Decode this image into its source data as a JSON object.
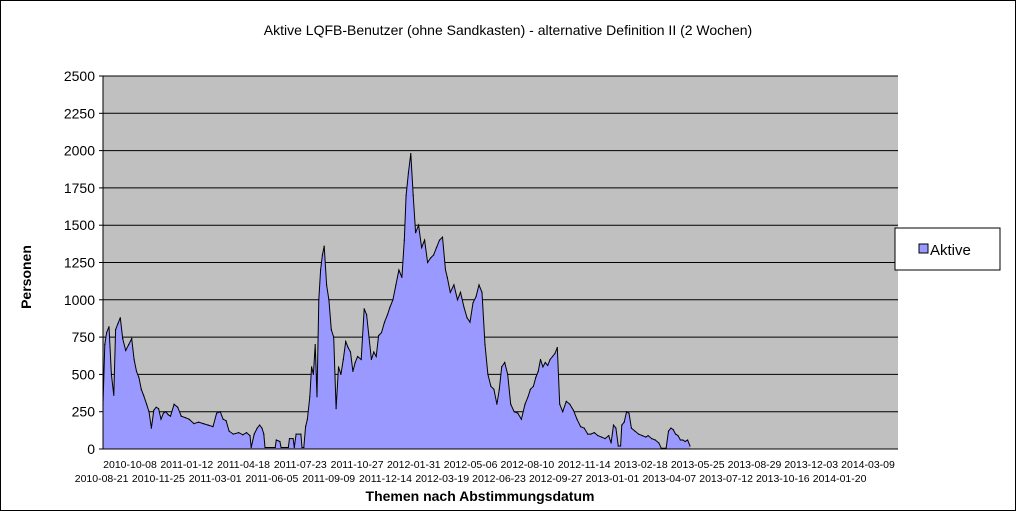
{
  "chart_data": {
    "type": "area",
    "title": "Aktive LQFB-Benutzer (ohne Sandkasten) - alternative Definition II (2 Wochen)",
    "xlabel": "Themen nach Abstimmungsdatum",
    "ylabel": "Personen",
    "ylim": [
      0,
      2500
    ],
    "yticks": [
      0,
      250,
      500,
      750,
      1000,
      1250,
      1500,
      1750,
      2000,
      2250,
      2500
    ],
    "grid": true,
    "legend": "right",
    "x_tick_labels_row1": [
      "2010-10-08",
      "2011-01-12",
      "2011-04-18",
      "2011-07-23",
      "2011-10-27",
      "2012-01-31",
      "2012-05-06",
      "2012-08-10",
      "2012-11-14",
      "2013-02-18",
      "2013-05-25",
      "2013-08-29",
      "2013-12-03",
      "2014-03-09"
    ],
    "x_tick_labels_row2": [
      "2010-08-21",
      "2010-11-25",
      "2011-03-01",
      "2011-06-05",
      "2011-09-09",
      "2011-12-14",
      "2012-03-19",
      "2012-06-23",
      "2012-09-27",
      "2013-01-01",
      "2013-04-07",
      "2013-07-12",
      "2013-10-16",
      "2014-01-20"
    ],
    "x_start": "2010-08-21",
    "x_end": "2014-04-12",
    "series": [
      {
        "name": "Aktive",
        "color": "#9999ff",
        "line_color": "#000000",
        "points": [
          [
            "2010-08-21",
            300
          ],
          [
            "2010-08-24",
            700
          ],
          [
            "2010-08-27",
            780
          ],
          [
            "2010-08-31",
            820
          ],
          [
            "2010-09-04",
            500
          ],
          [
            "2010-09-08",
            360
          ],
          [
            "2010-09-11",
            800
          ],
          [
            "2010-09-15",
            840
          ],
          [
            "2010-09-19",
            880
          ],
          [
            "2010-09-23",
            740
          ],
          [
            "2010-09-28",
            660
          ],
          [
            "2010-10-03",
            700
          ],
          [
            "2010-10-08",
            740
          ],
          [
            "2010-10-12",
            600
          ],
          [
            "2010-10-16",
            520
          ],
          [
            "2010-10-20",
            480
          ],
          [
            "2010-10-24",
            400
          ],
          [
            "2010-10-28",
            360
          ],
          [
            "2010-11-02",
            300
          ],
          [
            "2010-11-06",
            250
          ],
          [
            "2010-11-10",
            140
          ],
          [
            "2010-11-14",
            260
          ],
          [
            "2010-11-18",
            280
          ],
          [
            "2010-11-22",
            270
          ],
          [
            "2010-11-26",
            200
          ],
          [
            "2010-11-30",
            240
          ],
          [
            "2010-12-04",
            250
          ],
          [
            "2010-12-08",
            230
          ],
          [
            "2010-12-12",
            220
          ],
          [
            "2010-12-18",
            300
          ],
          [
            "2010-12-24",
            280
          ],
          [
            "2010-12-30",
            220
          ],
          [
            "2011-01-06",
            210
          ],
          [
            "2011-01-12",
            200
          ],
          [
            "2011-01-20",
            170
          ],
          [
            "2011-01-28",
            180
          ],
          [
            "2011-02-05",
            170
          ],
          [
            "2011-02-13",
            160
          ],
          [
            "2011-02-21",
            150
          ],
          [
            "2011-02-27",
            240
          ],
          [
            "2011-03-05",
            250
          ],
          [
            "2011-03-10",
            200
          ],
          [
            "2011-03-15",
            190
          ],
          [
            "2011-03-20",
            120
          ],
          [
            "2011-03-27",
            100
          ],
          [
            "2011-04-05",
            110
          ],
          [
            "2011-04-12",
            95
          ],
          [
            "2011-04-18",
            110
          ],
          [
            "2011-04-24",
            90
          ],
          [
            "2011-04-26",
            10
          ],
          [
            "2011-05-01",
            100
          ],
          [
            "2011-05-06",
            140
          ],
          [
            "2011-05-10",
            160
          ],
          [
            "2011-05-14",
            140
          ],
          [
            "2011-05-17",
            100
          ],
          [
            "2011-05-19",
            10
          ],
          [
            "2011-06-05",
            10
          ],
          [
            "2011-06-07",
            60
          ],
          [
            "2011-06-13",
            50
          ],
          [
            "2011-06-15",
            10
          ],
          [
            "2011-06-27",
            10
          ],
          [
            "2011-06-29",
            70
          ],
          [
            "2011-07-05",
            70
          ],
          [
            "2011-07-07",
            10
          ],
          [
            "2011-07-10",
            100
          ],
          [
            "2011-07-18",
            100
          ],
          [
            "2011-07-20",
            10
          ],
          [
            "2011-07-23",
            10
          ],
          [
            "2011-07-26",
            150
          ],
          [
            "2011-07-29",
            200
          ],
          [
            "2011-08-02",
            350
          ],
          [
            "2011-08-05",
            550
          ],
          [
            "2011-08-08",
            500
          ],
          [
            "2011-08-11",
            700
          ],
          [
            "2011-08-14",
            350
          ],
          [
            "2011-08-17",
            1000
          ],
          [
            "2011-08-20",
            1200
          ],
          [
            "2011-08-23",
            1300
          ],
          [
            "2011-08-26",
            1360
          ],
          [
            "2011-08-30",
            1100
          ],
          [
            "2011-09-03",
            1000
          ],
          [
            "2011-09-07",
            800
          ],
          [
            "2011-09-11",
            750
          ],
          [
            "2011-09-15",
            270
          ],
          [
            "2011-09-19",
            550
          ],
          [
            "2011-09-23",
            500
          ],
          [
            "2011-09-27",
            600
          ],
          [
            "2011-10-01",
            720
          ],
          [
            "2011-10-05",
            680
          ],
          [
            "2011-10-09",
            650
          ],
          [
            "2011-10-13",
            520
          ],
          [
            "2011-10-17",
            580
          ],
          [
            "2011-10-21",
            620
          ],
          [
            "2011-10-27",
            600
          ],
          [
            "2011-11-01",
            940
          ],
          [
            "2011-11-05",
            900
          ],
          [
            "2011-11-09",
            750
          ],
          [
            "2011-11-13",
            600
          ],
          [
            "2011-11-17",
            650
          ],
          [
            "2011-11-21",
            620
          ],
          [
            "2011-11-25",
            760
          ],
          [
            "2011-11-30",
            780
          ],
          [
            "2011-12-05",
            850
          ],
          [
            "2011-12-10",
            900
          ],
          [
            "2011-12-14",
            950
          ],
          [
            "2011-12-19",
            1000
          ],
          [
            "2011-12-24",
            1100
          ],
          [
            "2011-12-29",
            1200
          ],
          [
            "2012-01-03",
            1150
          ],
          [
            "2012-01-07",
            1400
          ],
          [
            "2012-01-10",
            1700
          ],
          [
            "2012-01-14",
            1850
          ],
          [
            "2012-01-18",
            1980
          ],
          [
            "2012-01-22",
            1700
          ],
          [
            "2012-01-26",
            1450
          ],
          [
            "2012-01-31",
            1500
          ],
          [
            "2012-02-05",
            1350
          ],
          [
            "2012-02-10",
            1400
          ],
          [
            "2012-02-15",
            1250
          ],
          [
            "2012-02-20",
            1280
          ],
          [
            "2012-02-25",
            1300
          ],
          [
            "2012-03-01",
            1350
          ],
          [
            "2012-03-06",
            1400
          ],
          [
            "2012-03-11",
            1420
          ],
          [
            "2012-03-16",
            1200
          ],
          [
            "2012-03-19",
            1150
          ],
          [
            "2012-03-24",
            1050
          ],
          [
            "2012-03-30",
            1100
          ],
          [
            "2012-04-05",
            1000
          ],
          [
            "2012-04-10",
            1050
          ],
          [
            "2012-04-16",
            950
          ],
          [
            "2012-04-21",
            880
          ],
          [
            "2012-04-26",
            850
          ],
          [
            "2012-05-01",
            980
          ],
          [
            "2012-05-06",
            1020
          ],
          [
            "2012-05-11",
            1100
          ],
          [
            "2012-05-16",
            1050
          ],
          [
            "2012-05-21",
            700
          ],
          [
            "2012-05-26",
            500
          ],
          [
            "2012-05-31",
            420
          ],
          [
            "2012-06-05",
            400
          ],
          [
            "2012-06-10",
            300
          ],
          [
            "2012-06-14",
            400
          ],
          [
            "2012-06-18",
            550
          ],
          [
            "2012-06-23",
            580
          ],
          [
            "2012-06-28",
            500
          ],
          [
            "2012-07-03",
            300
          ],
          [
            "2012-07-09",
            250
          ],
          [
            "2012-07-15",
            240
          ],
          [
            "2012-07-21",
            200
          ],
          [
            "2012-07-27",
            300
          ],
          [
            "2012-08-01",
            350
          ],
          [
            "2012-08-05",
            400
          ],
          [
            "2012-08-10",
            420
          ],
          [
            "2012-08-14",
            480
          ],
          [
            "2012-08-18",
            520
          ],
          [
            "2012-08-22",
            600
          ],
          [
            "2012-08-26",
            550
          ],
          [
            "2012-08-30",
            580
          ],
          [
            "2012-09-03",
            560
          ],
          [
            "2012-09-07",
            600
          ],
          [
            "2012-09-11",
            620
          ],
          [
            "2012-09-15",
            640
          ],
          [
            "2012-09-19",
            680
          ],
          [
            "2012-09-23",
            300
          ],
          [
            "2012-09-28",
            250
          ],
          [
            "2012-10-04",
            320
          ],
          [
            "2012-10-10",
            300
          ],
          [
            "2012-10-16",
            260
          ],
          [
            "2012-10-22",
            200
          ],
          [
            "2012-10-28",
            150
          ],
          [
            "2012-11-03",
            140
          ],
          [
            "2012-11-09",
            100
          ],
          [
            "2012-11-14",
            100
          ],
          [
            "2012-11-20",
            110
          ],
          [
            "2012-11-26",
            90
          ],
          [
            "2012-12-02",
            80
          ],
          [
            "2012-12-08",
            70
          ],
          [
            "2012-12-14",
            90
          ],
          [
            "2012-12-18",
            40
          ],
          [
            "2012-12-22",
            160
          ],
          [
            "2012-12-26",
            140
          ],
          [
            "2012-12-30",
            20
          ],
          [
            "2013-01-03",
            20
          ],
          [
            "2013-01-05",
            160
          ],
          [
            "2013-01-09",
            180
          ],
          [
            "2013-01-13",
            250
          ],
          [
            "2013-01-17",
            240
          ],
          [
            "2013-01-21",
            140
          ],
          [
            "2013-01-27",
            120
          ],
          [
            "2013-02-02",
            100
          ],
          [
            "2013-02-08",
            90
          ],
          [
            "2013-02-14",
            80
          ],
          [
            "2013-02-18",
            90
          ],
          [
            "2013-02-24",
            70
          ],
          [
            "2013-03-02",
            60
          ],
          [
            "2013-03-08",
            40
          ],
          [
            "2013-03-12",
            5
          ],
          [
            "2013-03-20",
            5
          ],
          [
            "2013-03-24",
            120
          ],
          [
            "2013-03-28",
            140
          ],
          [
            "2013-04-01",
            130
          ],
          [
            "2013-04-05",
            100
          ],
          [
            "2013-04-09",
            90
          ],
          [
            "2013-04-13",
            60
          ],
          [
            "2013-04-17",
            60
          ],
          [
            "2013-04-21",
            50
          ],
          [
            "2013-04-25",
            60
          ],
          [
            "2013-04-29",
            20
          ]
        ]
      }
    ]
  }
}
